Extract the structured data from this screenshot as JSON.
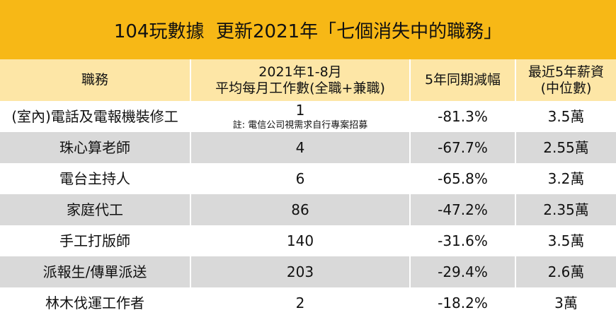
{
  "table": {
    "title": "104玩數據  更新2021年「七個消失中的職務」",
    "header": [
      [
        "職務"
      ],
      [
        "2021年1-8月",
        "平均每月工作數(全職+兼職)"
      ],
      [
        "5年同期減幅"
      ],
      [
        "最近5年薪資",
        "(中位數)"
      ]
    ],
    "rows": [
      [
        "(室內)電話及電報機裝修工",
        "1",
        "-81.3%",
        "3.5萬"
      ],
      [
        "珠心算老師",
        "4",
        "-67.7%",
        "2.55萬"
      ],
      [
        "電台主持人",
        "6",
        "-65.8%",
        "3.2萬"
      ],
      [
        "家庭代工",
        "86",
        "-47.2%",
        "2.35萬"
      ],
      [
        "手工打版師",
        "140",
        "-31.6%",
        "3.5萬"
      ],
      [
        "派報生/傳單派送",
        "203",
        "-29.4%",
        "2.6萬"
      ],
      [
        "林木伐運工作者",
        "2",
        "-18.2%",
        "3萬"
      ]
    ],
    "note": "註: 電信公司視需求自行專案招募"
  }
}
